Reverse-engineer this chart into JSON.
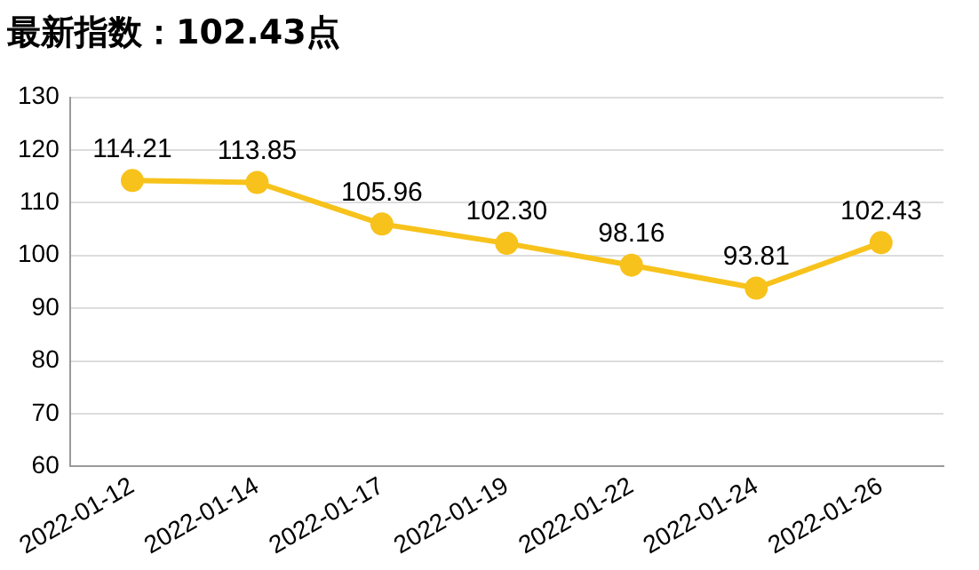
{
  "chart_data": {
    "type": "line",
    "title": "最新指数：102.43点",
    "categories": [
      "2022-01-12",
      "2022-01-14",
      "2022-01-17",
      "2022-01-19",
      "2022-01-22",
      "2022-01-24",
      "2022-01-26"
    ],
    "series": [
      {
        "color": "#f7c21b",
        "values": [
          114.21,
          113.85,
          105.96,
          102.3,
          98.16,
          93.81,
          102.43
        ],
        "value_labels": [
          "114.21",
          "113.85",
          "105.96",
          "102.30",
          "98.16",
          "93.81",
          "102.43"
        ]
      }
    ],
    "ylim": [
      60,
      130
    ],
    "yticks": [
      60,
      70,
      80,
      90,
      100,
      110,
      120,
      130
    ],
    "grid": "y",
    "marker": "circle",
    "line_style": "solid",
    "legend": false
  }
}
